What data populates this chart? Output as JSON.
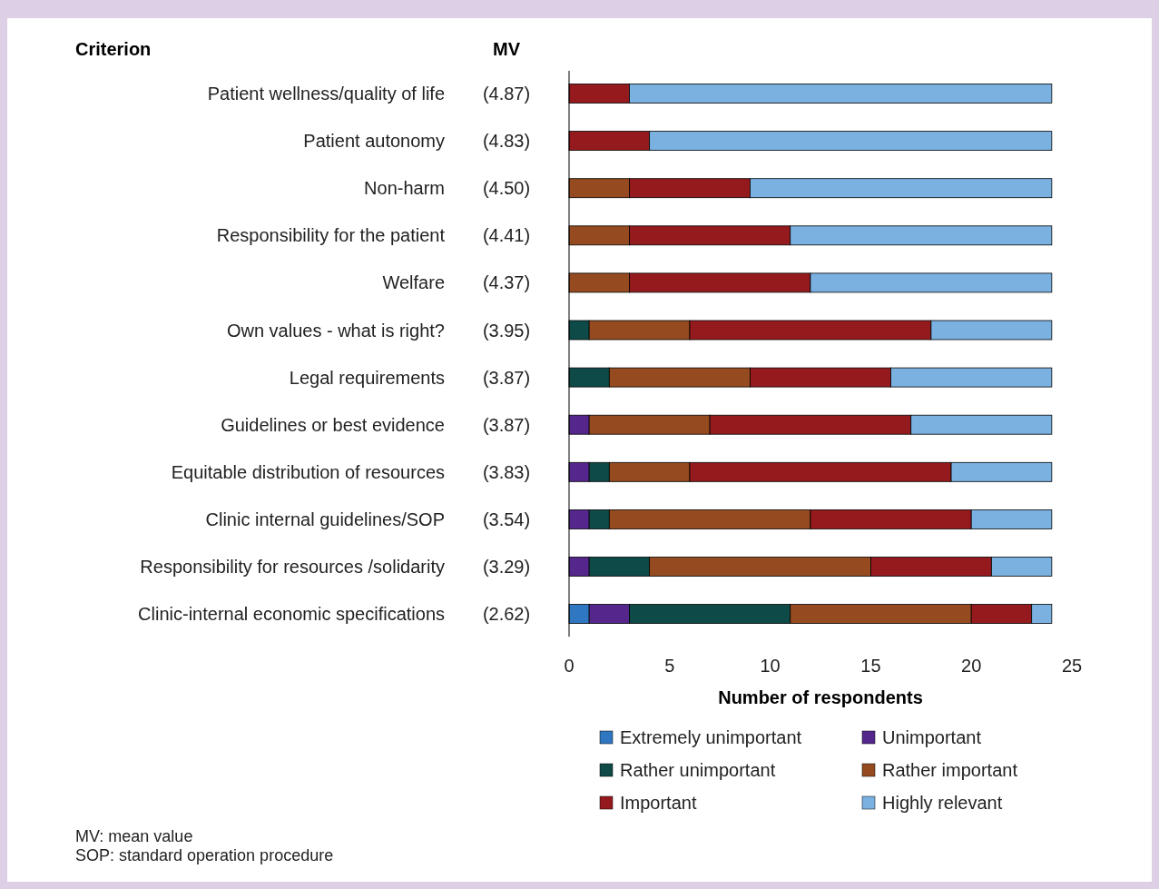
{
  "chart_data": {
    "type": "bar",
    "orientation": "horizontal",
    "stacked": true,
    "xlabel": "Number of respondents",
    "categories": [
      "Patient wellness/quality of life",
      "Patient autonomy",
      "Non-harm",
      "Responsibility for the patient",
      "Welfare",
      "Own values - what is right?",
      "Legal requirements",
      "Guidelines or best evidence",
      "Equitable distribution of resources",
      "Clinic internal guidelines/SOP",
      "Responsibility for resources /solidarity",
      "Clinic-internal economic specifications"
    ],
    "series": [
      {
        "name": "Extremely unimportant",
        "color": "#2f77c0",
        "values": [
          0,
          0,
          0,
          0,
          0,
          0,
          0,
          0,
          0,
          0,
          0,
          1
        ]
      },
      {
        "name": "Unimportant",
        "color": "#55278d",
        "values": [
          0,
          0,
          0,
          0,
          0,
          0,
          0,
          1,
          1,
          1,
          1,
          2
        ]
      },
      {
        "name": "Rather unimportant",
        "color": "#0e4a48",
        "values": [
          0,
          0,
          0,
          0,
          0,
          1,
          2,
          0,
          1,
          1,
          3,
          8
        ]
      },
      {
        "name": "Rather important",
        "color": "#954b1f",
        "values": [
          0,
          0,
          3,
          3,
          3,
          5,
          7,
          6,
          4,
          10,
          11,
          9
        ]
      },
      {
        "name": "Important",
        "color": "#951a1d",
        "values": [
          3,
          4,
          6,
          8,
          9,
          12,
          7,
          10,
          13,
          8,
          6,
          3
        ]
      },
      {
        "name": "Highly relevant",
        "color": "#7ab1e1",
        "values": [
          21,
          20,
          15,
          13,
          12,
          6,
          8,
          7,
          5,
          4,
          3,
          1
        ]
      }
    ],
    "xlim": [
      0,
      25
    ],
    "xticks": [
      0,
      5,
      10,
      15,
      20,
      25
    ],
    "legend": "bottom",
    "annotations": [
      "Criterion",
      "MV",
      "(4.87)",
      "(4.83)",
      "(4.50)",
      "(4.41)",
      "(4.37)",
      "(3.95)",
      "(3.87)",
      "(3.87)",
      "(3.83)",
      "(3.54)",
      "(3.29)",
      "(2.62)",
      "MV: mean value",
      "SOP: standard operation procedure"
    ]
  }
}
